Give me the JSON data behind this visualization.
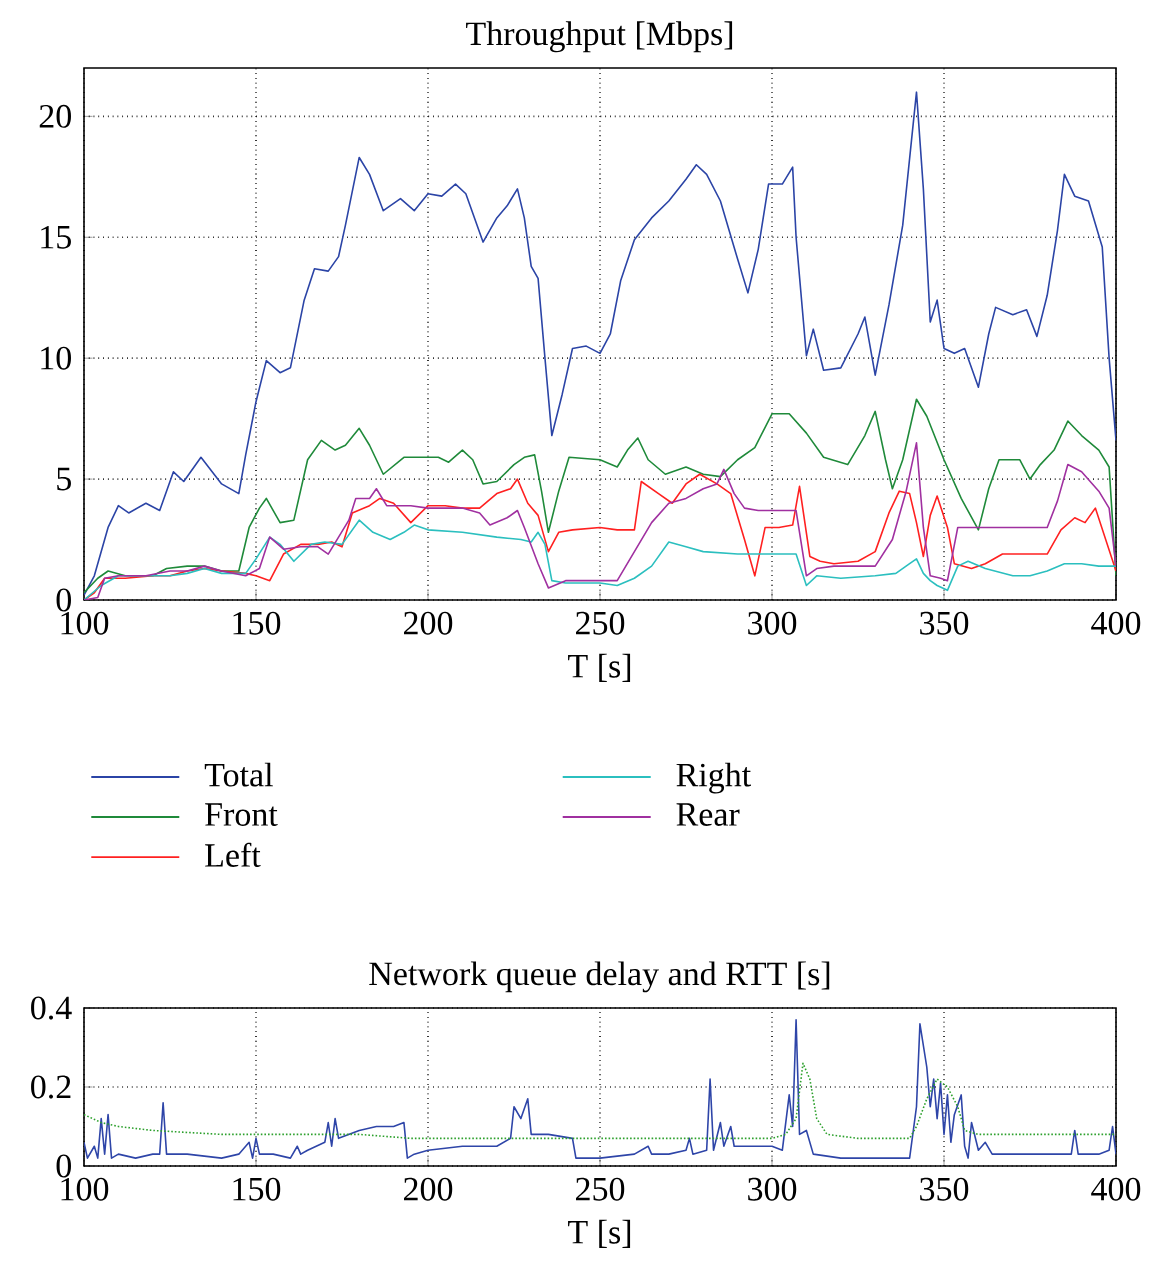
{
  "chart_data": [
    {
      "type": "line",
      "title": "Throughput [Mbps]",
      "xlabel": "T [s]",
      "xlim": [
        100,
        400
      ],
      "xticks": [
        100,
        150,
        200,
        250,
        300,
        350,
        400
      ],
      "ylim": [
        0,
        22
      ],
      "yticks": [
        0,
        5,
        10,
        15,
        20
      ],
      "grid": true,
      "legend": "bottom",
      "series": [
        {
          "name": "Total",
          "color": "#2b44a6",
          "x": [
            100,
            103,
            107,
            110,
            113,
            118,
            122,
            126,
            129,
            134,
            140,
            145,
            147,
            150,
            153,
            157,
            160,
            164,
            167,
            171,
            174,
            176,
            180,
            183,
            187,
            192,
            196,
            200,
            204,
            208,
            211,
            216,
            220,
            223,
            226,
            228,
            230,
            232,
            234,
            236,
            239,
            242,
            246,
            250,
            253,
            256,
            260,
            265,
            270,
            275,
            278,
            281,
            285,
            290,
            293,
            296,
            299,
            303,
            306,
            307,
            310,
            312,
            315,
            320,
            325,
            327,
            330,
            334,
            338,
            342,
            344,
            346,
            348,
            350,
            353,
            356,
            360,
            363,
            365,
            370,
            374,
            377,
            380,
            383,
            385,
            388,
            392,
            396,
            398,
            400
          ],
          "values": [
            0.2,
            1,
            3,
            3.9,
            3.6,
            4.0,
            3.7,
            5.3,
            4.9,
            5.9,
            4.8,
            4.4,
            6,
            8.2,
            9.9,
            9.4,
            9.6,
            12.4,
            13.7,
            13.6,
            14.2,
            15.5,
            18.3,
            17.6,
            16.1,
            16.6,
            16.1,
            16.8,
            16.7,
            17.2,
            16.8,
            14.8,
            15.8,
            16.3,
            17.0,
            15.8,
            13.8,
            13.3,
            10,
            6.8,
            8.5,
            10.4,
            10.5,
            10.2,
            11,
            13.2,
            14.9,
            15.8,
            16.5,
            17.4,
            18.0,
            17.6,
            16.5,
            14.1,
            12.7,
            14.5,
            17.2,
            17.2,
            17.9,
            15,
            10.1,
            11.2,
            9.5,
            9.6,
            11.0,
            11.7,
            9.3,
            12.2,
            15.5,
            21.0,
            17,
            11.5,
            12.4,
            10.4,
            10.2,
            10.4,
            8.8,
            11.0,
            12.1,
            11.8,
            12.0,
            10.9,
            12.6,
            15.3,
            17.6,
            16.7,
            16.5,
            14.6,
            10,
            6.6
          ]
        },
        {
          "name": "Front",
          "color": "#1f8a3a",
          "x": [
            100,
            104,
            107,
            112,
            120,
            124,
            130,
            135,
            140,
            145,
            148,
            151,
            153,
            157,
            161,
            165,
            169,
            173,
            176,
            180,
            183,
            187,
            193,
            200,
            203,
            206,
            210,
            213,
            216,
            220,
            225,
            228,
            231,
            233,
            235,
            238,
            241,
            250,
            255,
            258,
            261,
            264,
            269,
            275,
            280,
            285,
            290,
            295,
            300,
            305,
            310,
            315,
            322,
            327,
            330,
            333,
            335,
            338,
            342,
            345,
            350,
            355,
            360,
            363,
            366,
            372,
            375,
            378,
            382,
            386,
            390,
            395,
            398,
            400
          ],
          "values": [
            0.3,
            0.9,
            1.2,
            1.0,
            1.0,
            1.3,
            1.4,
            1.4,
            1.2,
            1.2,
            3,
            3.8,
            4.2,
            3.2,
            3.3,
            5.8,
            6.6,
            6.2,
            6.4,
            7.1,
            6.4,
            5.2,
            5.9,
            5.9,
            5.9,
            5.7,
            6.2,
            5.8,
            4.8,
            4.9,
            5.6,
            5.9,
            6.0,
            4.5,
            2.8,
            4.5,
            5.9,
            5.8,
            5.5,
            6.2,
            6.7,
            5.8,
            5.2,
            5.5,
            5.2,
            5.1,
            5.8,
            6.3,
            7.7,
            7.7,
            6.9,
            5.9,
            5.6,
            6.8,
            7.8,
            5.8,
            4.6,
            5.8,
            8.3,
            7.6,
            5.8,
            4.2,
            2.9,
            4.6,
            5.8,
            5.8,
            5.0,
            5.6,
            6.2,
            7.4,
            6.8,
            6.2,
            5.5,
            1.0
          ]
        },
        {
          "name": "Left",
          "color": "#ff2020",
          "x": [
            100,
            103,
            106,
            112,
            120,
            125,
            130,
            135,
            140,
            147,
            150,
            154,
            158,
            163,
            168,
            172,
            175,
            178,
            183,
            186,
            190,
            195,
            200,
            205,
            210,
            215,
            220,
            224,
            226,
            229,
            232,
            235,
            238,
            242,
            250,
            255,
            260,
            262,
            267,
            271,
            275,
            279,
            284,
            288,
            292,
            295,
            298,
            302,
            306,
            308,
            311,
            314,
            318,
            325,
            330,
            334,
            337,
            340,
            342,
            344,
            346,
            348,
            351,
            353,
            358,
            362,
            367,
            372,
            380,
            384,
            388,
            391,
            394,
            397,
            400
          ],
          "values": [
            0,
            0.3,
            0.9,
            0.9,
            1.0,
            1.0,
            1.2,
            1.3,
            1.2,
            1.1,
            1.0,
            0.8,
            1.9,
            2.3,
            2.3,
            2.4,
            2.2,
            3.6,
            3.9,
            4.2,
            4.0,
            3.2,
            3.9,
            3.9,
            3.8,
            3.8,
            4.4,
            4.6,
            5.0,
            4.0,
            3.5,
            2.0,
            2.8,
            2.9,
            3.0,
            2.9,
            2.9,
            4.9,
            4.4,
            4.0,
            4.8,
            5.2,
            4.8,
            4.4,
            2.5,
            1.0,
            3.0,
            3.0,
            3.1,
            4.7,
            1.8,
            1.6,
            1.5,
            1.6,
            2.0,
            3.6,
            4.5,
            4.4,
            3.2,
            1.8,
            3.5,
            4.3,
            3.0,
            1.5,
            1.3,
            1.5,
            1.9,
            1.9,
            1.9,
            2.9,
            3.4,
            3.2,
            3.8,
            2.5,
            1.2
          ]
        },
        {
          "name": "Right",
          "color": "#2bbfbf",
          "x": [
            100,
            105,
            110,
            120,
            125,
            130,
            135,
            140,
            147,
            150,
            154,
            157,
            161,
            166,
            170,
            175,
            180,
            184,
            189,
            193,
            196,
            200,
            210,
            220,
            227,
            230,
            232,
            234,
            236,
            240,
            250,
            255,
            260,
            265,
            270,
            275,
            280,
            290,
            300,
            307,
            310,
            313,
            320,
            330,
            336,
            340,
            342,
            344,
            346,
            348,
            351,
            354,
            357,
            362,
            370,
            375,
            380,
            385,
            390,
            395,
            400
          ],
          "values": [
            0,
            0.6,
            1.0,
            1.0,
            1.0,
            1.1,
            1.3,
            1.1,
            1.1,
            1.7,
            2.6,
            2.3,
            1.6,
            2.3,
            2.4,
            2.3,
            3.3,
            2.8,
            2.5,
            2.8,
            3.1,
            2.9,
            2.8,
            2.6,
            2.5,
            2.4,
            2.8,
            2.3,
            0.8,
            0.7,
            0.7,
            0.6,
            0.9,
            1.4,
            2.4,
            2.2,
            2.0,
            1.9,
            1.9,
            1.9,
            0.6,
            1.0,
            0.9,
            1.0,
            1.1,
            1.5,
            1.7,
            1.1,
            0.8,
            0.6,
            0.4,
            1.4,
            1.6,
            1.3,
            1.0,
            1.0,
            1.2,
            1.5,
            1.5,
            1.4,
            1.4
          ]
        },
        {
          "name": "Rear",
          "color": "#a030a0",
          "x": [
            100,
            104,
            106,
            110,
            118,
            125,
            130,
            135,
            140,
            147,
            151,
            154,
            158,
            163,
            168,
            171,
            174,
            177,
            179,
            183,
            185,
            188,
            195,
            200,
            210,
            215,
            218,
            223,
            226,
            228,
            232,
            235,
            240,
            250,
            255,
            260,
            265,
            270,
            275,
            280,
            284,
            286,
            289,
            292,
            296,
            302,
            307,
            310,
            313,
            318,
            325,
            330,
            335,
            339,
            342,
            344,
            346,
            349,
            351,
            354,
            357,
            365,
            375,
            380,
            383,
            386,
            390,
            395,
            398,
            400
          ],
          "values": [
            0,
            0.1,
            0.9,
            1.0,
            1.0,
            1.2,
            1.2,
            1.4,
            1.2,
            1.0,
            1.3,
            2.6,
            2.1,
            2.2,
            2.2,
            1.9,
            2.6,
            3.3,
            4.2,
            4.2,
            4.6,
            3.9,
            3.9,
            3.8,
            3.8,
            3.6,
            3.1,
            3.4,
            3.7,
            3.0,
            1.5,
            0.5,
            0.8,
            0.8,
            0.8,
            2.0,
            3.2,
            4.0,
            4.2,
            4.6,
            4.8,
            5.4,
            4.4,
            3.8,
            3.7,
            3.7,
            3.7,
            1.0,
            1.3,
            1.4,
            1.4,
            1.4,
            2.5,
            4.5,
            6.5,
            3.0,
            1.0,
            0.9,
            0.8,
            3.0,
            3.0,
            3.0,
            3.0,
            3.0,
            4.1,
            5.6,
            5.3,
            4.5,
            3.8,
            1.4
          ]
        }
      ]
    },
    {
      "type": "line",
      "title": "Network queue delay and RTT [s]",
      "xlabel": "T [s]",
      "xlim": [
        100,
        400
      ],
      "xticks": [
        100,
        150,
        200,
        250,
        300,
        350,
        400
      ],
      "ylim": [
        0,
        0.4
      ],
      "yticks": [
        0,
        0.2,
        0.4
      ],
      "grid": true,
      "series": [
        {
          "color": "#2e45a8",
          "line_style": "solid",
          "x": [
            100,
            101,
            103,
            104,
            105,
            106,
            107,
            108,
            110,
            115,
            120,
            122,
            123,
            124,
            130,
            140,
            145,
            148,
            149,
            150,
            151,
            155,
            160,
            162,
            163,
            165,
            170,
            171,
            172,
            173,
            174,
            180,
            185,
            190,
            193,
            194,
            196,
            200,
            210,
            220,
            224,
            225,
            227,
            229,
            230,
            235,
            242,
            243,
            250,
            260,
            264,
            265,
            270,
            275,
            276,
            277,
            281,
            282,
            283,
            285,
            286,
            288,
            289,
            295,
            300,
            303,
            305,
            306,
            307,
            308,
            310,
            312,
            320,
            330,
            340,
            342,
            343,
            345,
            346,
            347,
            348,
            349,
            350,
            351,
            352,
            353,
            355,
            356,
            357,
            358,
            360,
            362,
            364,
            370,
            380,
            387,
            388,
            389,
            395,
            398,
            399,
            400
          ],
          "values": [
            0.06,
            0.02,
            0.05,
            0.02,
            0.12,
            0.03,
            0.13,
            0.02,
            0.03,
            0.02,
            0.03,
            0.03,
            0.16,
            0.03,
            0.03,
            0.02,
            0.03,
            0.06,
            0.02,
            0.07,
            0.03,
            0.03,
            0.02,
            0.05,
            0.03,
            0.04,
            0.06,
            0.11,
            0.05,
            0.12,
            0.07,
            0.09,
            0.1,
            0.1,
            0.11,
            0.02,
            0.03,
            0.04,
            0.05,
            0.05,
            0.07,
            0.15,
            0.12,
            0.17,
            0.08,
            0.08,
            0.07,
            0.02,
            0.02,
            0.03,
            0.05,
            0.03,
            0.03,
            0.04,
            0.07,
            0.03,
            0.04,
            0.22,
            0.04,
            0.11,
            0.05,
            0.1,
            0.05,
            0.05,
            0.05,
            0.04,
            0.18,
            0.1,
            0.37,
            0.08,
            0.09,
            0.03,
            0.02,
            0.02,
            0.02,
            0.15,
            0.36,
            0.25,
            0.15,
            0.22,
            0.12,
            0.21,
            0.08,
            0.18,
            0.06,
            0.13,
            0.18,
            0.05,
            0.02,
            0.11,
            0.04,
            0.06,
            0.03,
            0.03,
            0.03,
            0.03,
            0.09,
            0.03,
            0.03,
            0.04,
            0.1,
            0.03
          ]
        },
        {
          "color": "#2ca02c",
          "line_style": "dotted",
          "x": [
            100,
            105,
            110,
            120,
            140,
            160,
            180,
            195,
            210,
            240,
            260,
            300,
            304,
            307,
            309,
            311,
            313,
            316,
            325,
            340,
            342,
            345,
            348,
            351,
            354,
            356,
            360,
            380,
            400
          ],
          "values": [
            0.13,
            0.11,
            0.1,
            0.09,
            0.08,
            0.08,
            0.08,
            0.07,
            0.07,
            0.07,
            0.07,
            0.07,
            0.08,
            0.12,
            0.26,
            0.22,
            0.12,
            0.08,
            0.07,
            0.07,
            0.1,
            0.17,
            0.22,
            0.2,
            0.15,
            0.09,
            0.08,
            0.08,
            0.08
          ]
        }
      ]
    }
  ]
}
